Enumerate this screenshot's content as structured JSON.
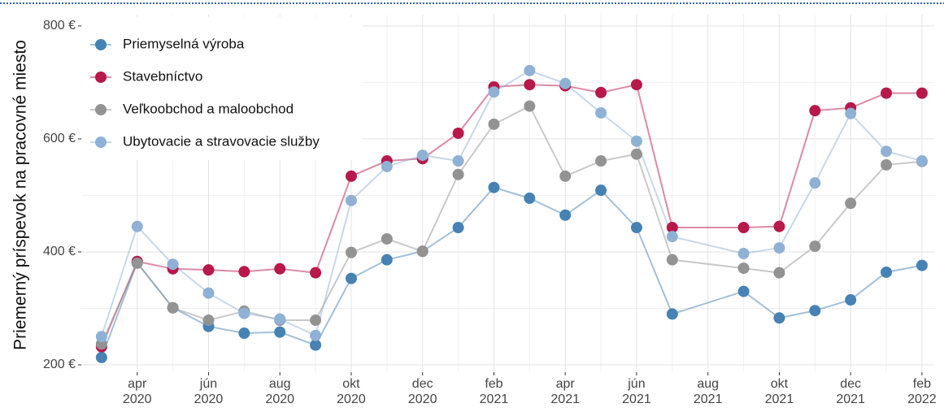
{
  "chart_data": {
    "type": "line",
    "y_label": "Priemerný príspevok na pracovné miesto",
    "x": [
      "2020-03",
      "2020-04",
      "2020-05",
      "2020-06",
      "2020-07",
      "2020-08",
      "2020-09",
      "2020-10",
      "2020-11",
      "2020-12",
      "2021-01",
      "2021-02",
      "2021-03",
      "2021-04",
      "2021-05",
      "2021-06",
      "2021-07",
      "2021-09",
      "2021-10",
      "2021-11",
      "2021-12",
      "2022-01",
      "2022-02"
    ],
    "series": [
      {
        "name": "Priemyselná výroba",
        "color": "#4682b4",
        "values": [
          213,
          381,
          301,
          268,
          256,
          258,
          235,
          353,
          386,
          401,
          443,
          514,
          495,
          465,
          509,
          443,
          290,
          330,
          283,
          296,
          315,
          364,
          376
        ]
      },
      {
        "name": "Stavebníctvo",
        "color": "#b8184a",
        "values": [
          232,
          383,
          370,
          368,
          365,
          370,
          363,
          534,
          561,
          565,
          610,
          692,
          696,
          694,
          682,
          696,
          443,
          443,
          445,
          650,
          655,
          681,
          681
        ]
      },
      {
        "name": "Veľkoobchod a maloobchod",
        "color": "#939393",
        "values": [
          237,
          380,
          301,
          279,
          295,
          279,
          279,
          399,
          423,
          401,
          537,
          626,
          658,
          534,
          561,
          573,
          386,
          371,
          363,
          410,
          486,
          554,
          560
        ]
      },
      {
        "name": "Ubytovacie a stravovacie služby",
        "color": "#8fb1d6",
        "values": [
          250,
          445,
          378,
          327,
          291,
          281,
          252,
          491,
          551,
          571,
          561,
          683,
          721,
          698,
          646,
          596,
          427,
          397,
          407,
          522,
          645,
          578,
          561
        ]
      }
    ],
    "xlim": [
      "2020-02-14",
      "2022-02-12"
    ],
    "xticks": [
      {
        "value": "2020-04",
        "label": "apr 2020"
      },
      {
        "value": "2020-06",
        "label": "jún 2020"
      },
      {
        "value": "2020-08",
        "label": "aug 2020"
      },
      {
        "value": "2020-10",
        "label": "okt 2020"
      },
      {
        "value": "2020-12",
        "label": "dec 2020"
      },
      {
        "value": "2021-02",
        "label": "feb 2021"
      },
      {
        "value": "2021-04",
        "label": "apr 2021"
      },
      {
        "value": "2021-06",
        "label": "jún 2021"
      },
      {
        "value": "2021-08",
        "label": "aug 2021"
      },
      {
        "value": "2021-10",
        "label": "okt 2021"
      },
      {
        "value": "2021-12",
        "label": "dec 2021"
      },
      {
        "value": "2022-02",
        "label": "feb 2022"
      }
    ],
    "ylim": [
      187,
      820
    ],
    "yticks": [
      {
        "value": 200,
        "label": "200 €"
      },
      {
        "value": 400,
        "label": "400 €"
      },
      {
        "value": 600,
        "label": "600 €"
      },
      {
        "value": 800,
        "label": "800 €"
      }
    ],
    "grid": true,
    "legend": "top-left"
  }
}
